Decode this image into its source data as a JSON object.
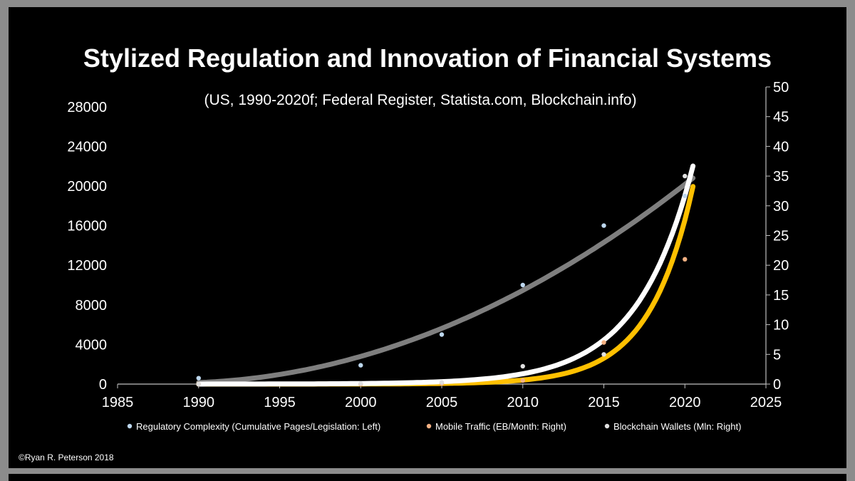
{
  "chart_data": {
    "type": "scatter",
    "title": "Stylized Regulation and Innovation of Financial Systems",
    "subtitle": "(US, 1990-2020f; Federal Register, Statista.com, Blockchain.info)",
    "x_ticks": [
      "1985",
      "1990",
      "1995",
      "2000",
      "2005",
      "2010",
      "2015",
      "2020",
      "2025"
    ],
    "xlim": [
      1985,
      2025
    ],
    "y_left_ticks": [
      "0",
      "4000",
      "8000",
      "12000",
      "16000",
      "20000",
      "24000",
      "28000"
    ],
    "ylim_left": [
      0,
      30000
    ],
    "y_right_ticks": [
      "0",
      "5",
      "10",
      "15",
      "20",
      "25",
      "30",
      "35",
      "40",
      "45",
      "50"
    ],
    "ylim_right": [
      0,
      50
    ],
    "series": [
      {
        "name": "Regulatory Complexity (Cumulative Pages/Legislation: Left)",
        "axis": "left",
        "point_color": "#bdd7ee",
        "trend_color": "#7f7f7f",
        "x": [
          1990,
          2000,
          2005,
          2010,
          2015,
          2020
        ],
        "values": [
          600,
          1900,
          5000,
          10000,
          16000,
          19000
        ]
      },
      {
        "name": "Mobile Traffic (EB/Month: Right)",
        "axis": "right",
        "point_color": "#f4b183",
        "trend_color": "#ffc000",
        "x": [
          1990,
          2000,
          2005,
          2010,
          2015,
          2020
        ],
        "values": [
          0,
          0,
          0.1,
          0.6,
          7,
          21
        ]
      },
      {
        "name": "Blockchain Wallets (Mln: Right)",
        "axis": "right",
        "point_color": "#e0e0e0",
        "trend_color": "#ffffff",
        "x": [
          1990,
          2000,
          2005,
          2010,
          2015,
          2020
        ],
        "values": [
          0,
          0.1,
          0.3,
          3,
          5,
          35
        ]
      }
    ]
  },
  "credit": "©Ryan R. Peterson 2018"
}
